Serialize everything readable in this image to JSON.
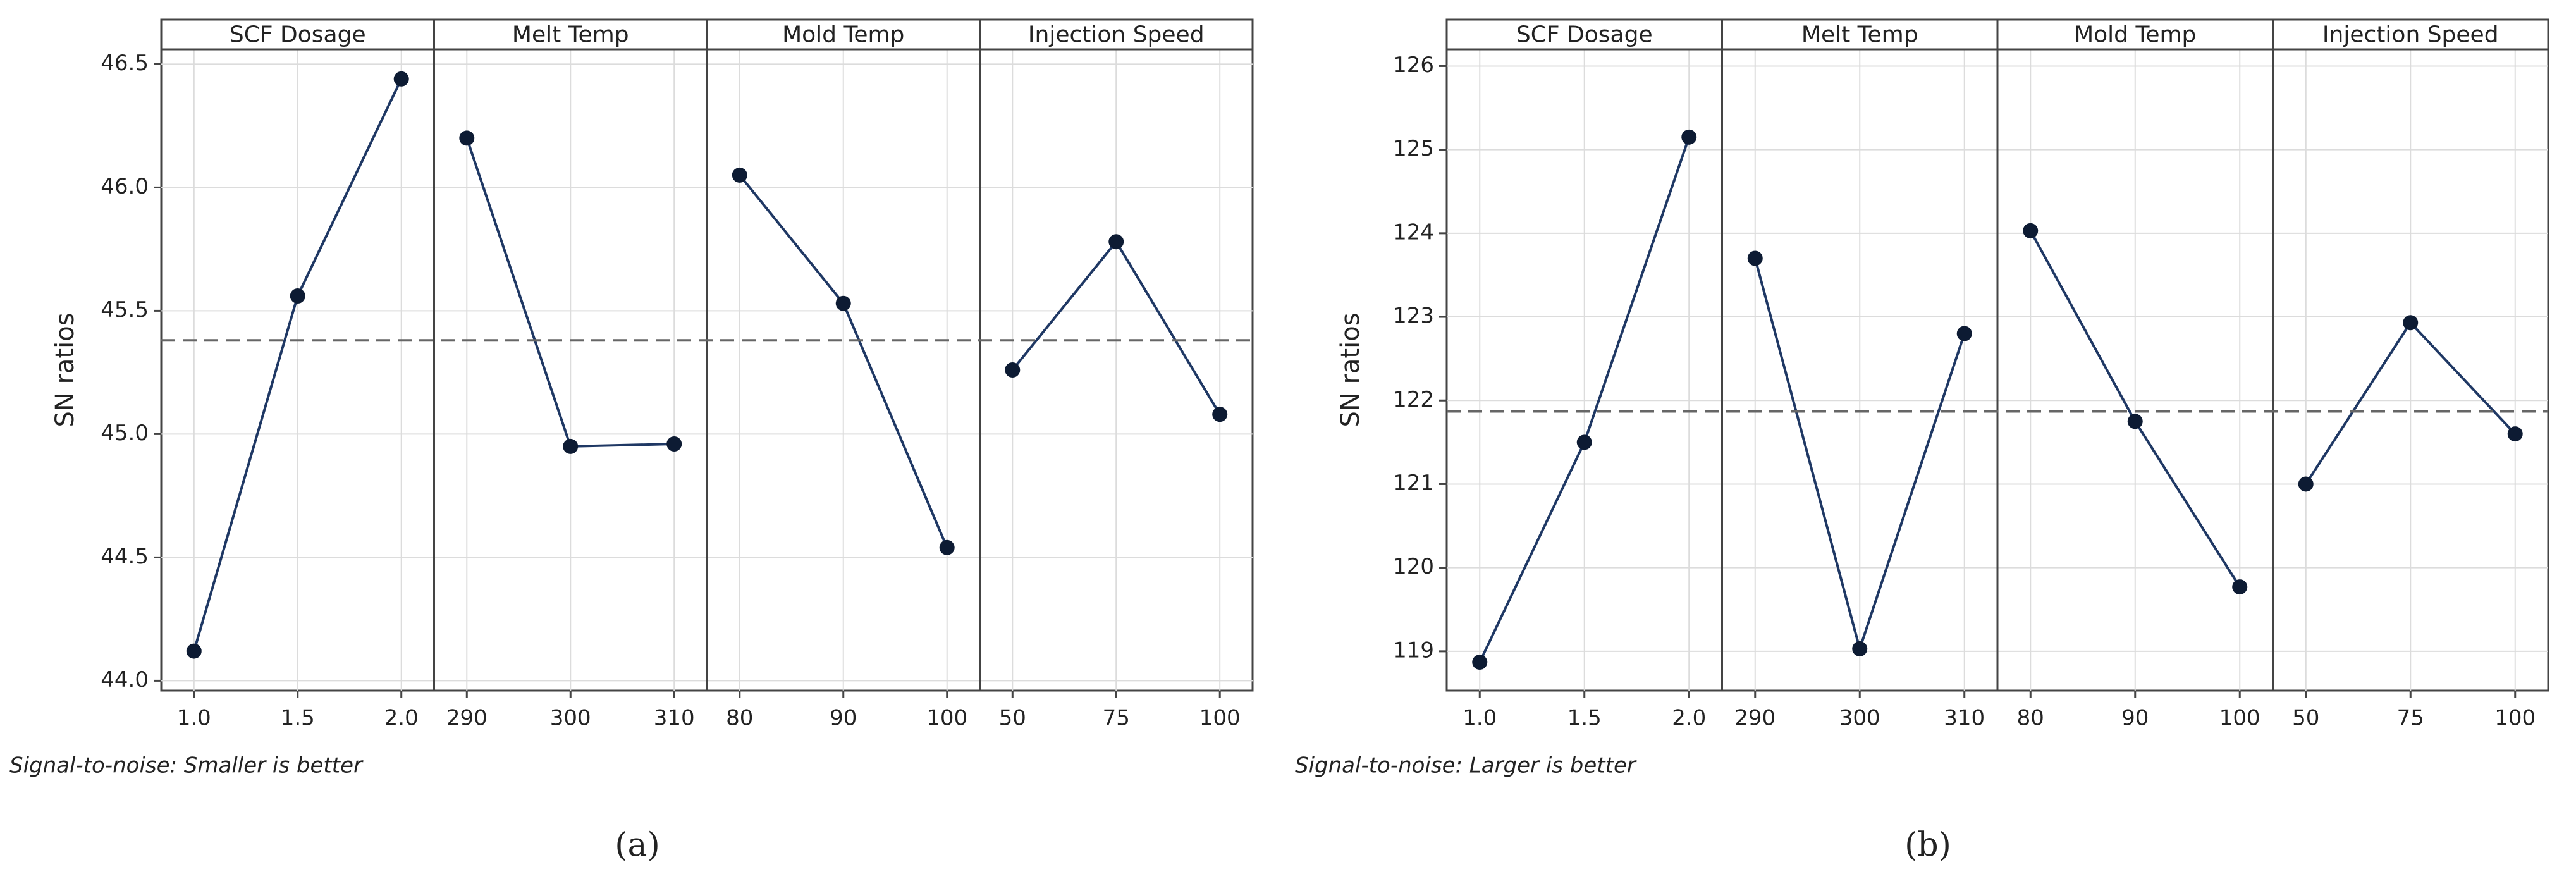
{
  "chart_data": [
    {
      "type": "line",
      "ylabel": "SN ratios",
      "footnote": "Signal-to-noise: Smaller is better",
      "caption": "(a)",
      "ylim": [
        43.96,
        46.56
      ],
      "yticks": [
        {
          "value": 44,
          "label": "44.0"
        },
        44.5,
        {
          "value": 45,
          "label": "45.0"
        },
        45.5,
        {
          "value": 46,
          "label": "46.0"
        },
        46.5
      ],
      "mean": 45.38,
      "grid": true,
      "color": "#1f3864",
      "panels": [
        {
          "title": "SCF Dosage",
          "categories": [
            "1.0",
            "1.5",
            "2.0"
          ],
          "values": [
            44.12,
            45.56,
            46.44
          ]
        },
        {
          "title": "Melt Temp",
          "categories": [
            "290",
            "300",
            "310"
          ],
          "values": [
            46.2,
            44.95,
            44.96
          ]
        },
        {
          "title": "Mold Temp",
          "categories": [
            "80",
            "90",
            "100"
          ],
          "values": [
            46.05,
            45.53,
            44.54
          ]
        },
        {
          "title": "Injection Speed",
          "categories": [
            "50",
            "75",
            "100"
          ],
          "values": [
            45.26,
            45.78,
            45.08
          ]
        }
      ]
    },
    {
      "type": "line",
      "ylabel": "SN ratios",
      "footnote": "Signal-to-noise: Larger is better",
      "caption": "(b)",
      "ylim": [
        118.53,
        126.2
      ],
      "yticks": [
        119,
        120,
        121,
        122,
        123,
        124,
        125,
        126
      ],
      "mean": 121.87,
      "grid": true,
      "color": "#1f3864",
      "panels": [
        {
          "title": "SCF Dosage",
          "categories": [
            "1.0",
            "1.5",
            "2.0"
          ],
          "values": [
            118.87,
            121.5,
            125.15
          ]
        },
        {
          "title": "Melt Temp",
          "categories": [
            "290",
            "300",
            "310"
          ],
          "values": [
            123.7,
            119.03,
            122.8
          ]
        },
        {
          "title": "Mold Temp",
          "categories": [
            "80",
            "90",
            "100"
          ],
          "values": [
            124.03,
            121.75,
            119.77
          ]
        },
        {
          "title": "Injection Speed",
          "categories": [
            "50",
            "75",
            "100"
          ],
          "values": [
            121.0,
            122.93,
            121.6
          ]
        }
      ]
    }
  ]
}
